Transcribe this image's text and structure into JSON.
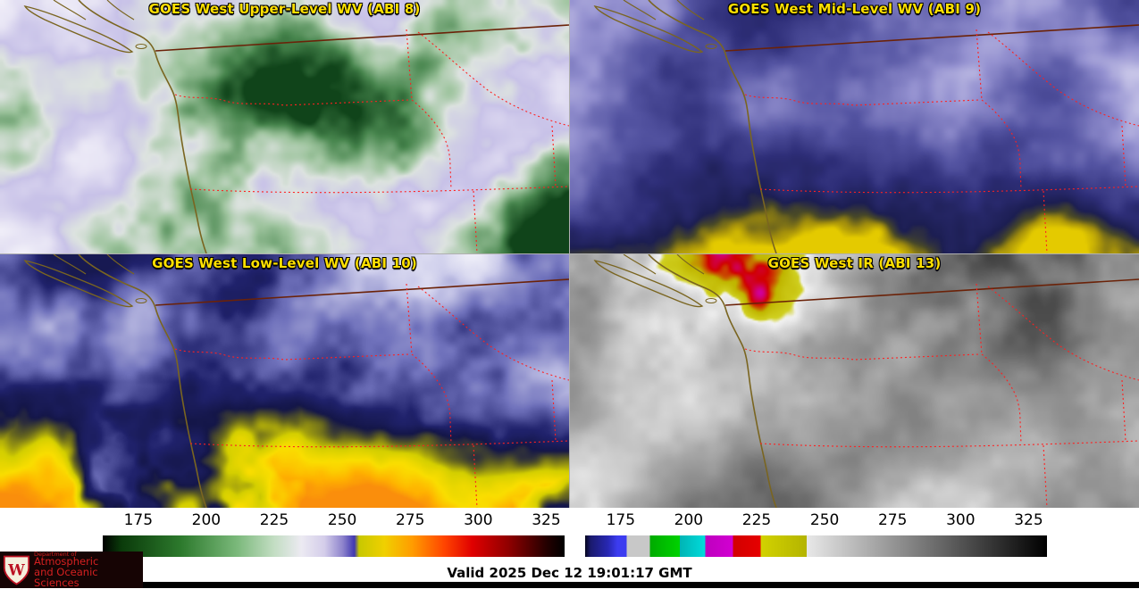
{
  "panels": [
    {
      "id": "abi8",
      "title": "GOES West Upper-Level WV (ABI 8)"
    },
    {
      "id": "abi9",
      "title": "GOES West Mid-Level WV (ABI 9)"
    },
    {
      "id": "abi10",
      "title": "GOES West Low-Level WV (ABI 10)"
    },
    {
      "id": "abi13",
      "title": "GOES West IR (ABI 13)"
    }
  ],
  "colorbars": [
    {
      "name": "water-vapor-brightness-temperature-scale",
      "ticks": [
        "175",
        "200",
        "225",
        "250",
        "275",
        "300",
        "325"
      ],
      "stops": [
        [
          0.0,
          "#000000"
        ],
        [
          0.04,
          "#0a3a0a"
        ],
        [
          0.17,
          "#2d7a2d"
        ],
        [
          0.29,
          "#7ab87a"
        ],
        [
          0.37,
          "#c2ddc2"
        ],
        [
          0.43,
          "#eceaf2"
        ],
        [
          0.48,
          "#d4cdea"
        ],
        [
          0.52,
          "#8d83cc"
        ],
        [
          0.545,
          "#4038b0"
        ],
        [
          0.555,
          "#c8c800"
        ],
        [
          0.61,
          "#f0d000"
        ],
        [
          0.67,
          "#ff9c00"
        ],
        [
          0.74,
          "#ff4400"
        ],
        [
          0.8,
          "#e00000"
        ],
        [
          0.88,
          "#8e0000"
        ],
        [
          0.96,
          "#250000"
        ],
        [
          1.0,
          "#000000"
        ]
      ]
    },
    {
      "name": "ir-brightness-temperature-scale",
      "ticks": [
        "175",
        "200",
        "225",
        "250",
        "275",
        "300",
        "325"
      ],
      "stops": [
        [
          0.0,
          "#05051e"
        ],
        [
          0.012,
          "#1a1a6e"
        ],
        [
          0.05,
          "#2828b4"
        ],
        [
          0.07,
          "#3c3cf0"
        ],
        [
          0.09,
          "#3c3cf0"
        ],
        [
          0.09,
          "#c8c8c8"
        ],
        [
          0.14,
          "#c8c8c8"
        ],
        [
          0.14,
          "#00aa00"
        ],
        [
          0.205,
          "#00d200"
        ],
        [
          0.205,
          "#00b4b4"
        ],
        [
          0.26,
          "#00dcdc"
        ],
        [
          0.26,
          "#be00be"
        ],
        [
          0.32,
          "#d200d2"
        ],
        [
          0.32,
          "#d20000"
        ],
        [
          0.38,
          "#e60000"
        ],
        [
          0.38,
          "#d2d200"
        ],
        [
          0.48,
          "#b4b400"
        ],
        [
          0.48,
          "#e8e8e8"
        ],
        [
          1.0,
          "#000000"
        ]
      ]
    }
  ],
  "branding": {
    "crest_letter": "W",
    "dept_line1": "Department of",
    "dept_line2": "Atmospheric",
    "dept_line3": "and Oceanic Sciences"
  },
  "footer": {
    "valid_label": "Valid 2025 Dec 12 19:01:17 GMT"
  },
  "colors": {
    "title_text": "#ffe000",
    "tick_text": "#000000",
    "state_border": "#ff2020",
    "international_border": "#6b2208",
    "coastline": "#7a6520",
    "logo_background": "#160404",
    "logo_text": "#d42020",
    "bottom_bar": "#000000"
  }
}
